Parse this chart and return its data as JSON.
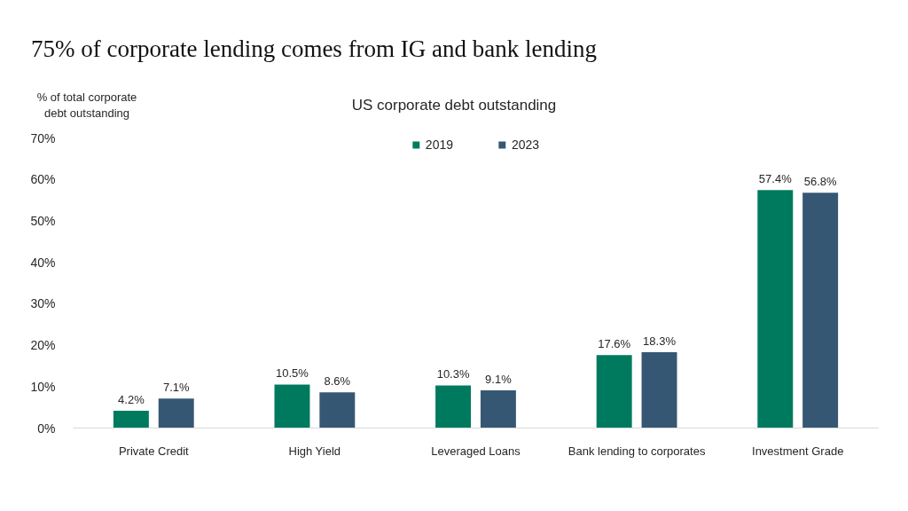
{
  "chart_data": {
    "type": "bar",
    "title": "75% of corporate lending comes from IG and bank lending",
    "subtitle": "US corporate debt outstanding",
    "ylabel": "% of total corporate debt outstanding",
    "categories": [
      "Private Credit",
      "High Yield",
      "Leveraged Loans",
      "Bank lending to corporates",
      "Investment Grade"
    ],
    "series": [
      {
        "name": "2019",
        "color": "#007a5e",
        "values": [
          4.2,
          10.5,
          10.3,
          17.6,
          57.4
        ],
        "value_labels": [
          "4.2%",
          "10.5%",
          "10.3%",
          "17.6%",
          "57.4%"
        ]
      },
      {
        "name": "2023",
        "color": "#365774",
        "values": [
          7.1,
          8.6,
          9.1,
          18.3,
          56.8
        ],
        "value_labels": [
          "7.1%",
          "8.6%",
          "9.1%",
          "18.3%",
          "56.8%"
        ]
      }
    ],
    "ylim": [
      0,
      70
    ],
    "yticks": [
      {
        "value": 0,
        "label": "0%"
      },
      {
        "value": 10,
        "label": "10%"
      },
      {
        "value": 20,
        "label": "20%"
      },
      {
        "value": 30,
        "label": "30%"
      },
      {
        "value": 40,
        "label": "40%"
      },
      {
        "value": 50,
        "label": "50%"
      },
      {
        "value": 60,
        "label": "60%"
      },
      {
        "value": 70,
        "label": "70%"
      }
    ],
    "grid": false,
    "legend": "top"
  }
}
